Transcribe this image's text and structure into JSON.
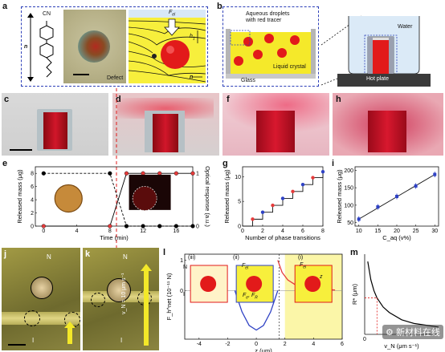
{
  "panels": {
    "a": {
      "letter": "a",
      "molecule_label": "CN",
      "n_label": "n",
      "defect_label": "Defect",
      "force_label": "F",
      "force_sub": "el",
      "h_label": "h",
      "h_sub": "1",
      "sub_n": "n"
    },
    "b": {
      "letter": "b",
      "droplets_label_1": "Aqueous droplets",
      "droplets_label_2": "with red tracer",
      "liquid_crystal_label": "Liquid crystal",
      "glass_label": "Glass",
      "water_label": "Water",
      "hotplate_label": "Hot plate"
    },
    "c": {
      "letter": "c"
    },
    "d": {
      "letter": "d"
    },
    "f": {
      "letter": "f"
    },
    "h": {
      "letter": "h"
    },
    "e": {
      "letter": "e"
    },
    "g": {
      "letter": "g"
    },
    "i": {
      "letter": "i"
    },
    "j": {
      "letter": "j",
      "N": "N",
      "I": "I"
    },
    "k": {
      "letter": "k",
      "N": "N",
      "I": "I",
      "velocity": "v_N = 10 μm s⁻¹"
    },
    "l": {
      "letter": "l",
      "iii": "(iii)",
      "ii": "(ii)",
      "i": "(i)",
      "N": "N",
      "I": "I",
      "z": "z",
      "Fel": "F",
      "Fel_sub": "el",
      "Fe": "F",
      "Fe_sub": "e",
      "Fr": "F",
      "Fr_sub": "R"
    },
    "m": {
      "letter": "m"
    }
  },
  "watermark": "新材料在线",
  "chart_data": [
    {
      "panel": "e",
      "type": "line",
      "xlabel": "Time (min)",
      "ylabel": "Released mass (μg)",
      "ylabel_right": "Optical response (a.u.)",
      "xticks": [
        0,
        4,
        8,
        12,
        16
      ],
      "yticks": [
        0,
        2,
        4,
        6,
        8
      ],
      "yticks_right": [
        0,
        1
      ],
      "xlim": [
        -1,
        18
      ],
      "ylim": [
        0,
        9
      ],
      "series": [
        {
          "color": "#e53b3b",
          "x": [
            0,
            8,
            10,
            12,
            14,
            16,
            18
          ],
          "y": [
            0,
            0,
            8,
            8,
            8,
            8,
            8
          ]
        },
        {
          "color": "#000000",
          "x": [
            0,
            8,
            10,
            12,
            14,
            16,
            18
          ],
          "y": [
            8,
            8,
            0,
            0,
            0,
            0,
            0
          ]
        }
      ]
    },
    {
      "panel": "g",
      "type": "line",
      "xlabel": "Number of phase transitions",
      "ylabel": "Released mass (μg)",
      "xticks": [
        0,
        2,
        4,
        6,
        8
      ],
      "yticks": [
        0,
        5,
        10
      ],
      "xlim": [
        0,
        8
      ],
      "ylim": [
        0,
        12
      ],
      "steps": {
        "x": [
          1,
          2,
          3,
          4,
          5,
          6,
          7,
          8
        ],
        "y": [
          1.4,
          2.8,
          4.2,
          5.6,
          7.0,
          8.4,
          9.8,
          11.0
        ]
      }
    },
    {
      "panel": "i",
      "type": "scatter",
      "xlabel": "C_aq (v%)",
      "ylabel": "Released mass (μg)",
      "xticks": [
        10,
        15,
        20,
        25,
        30
      ],
      "yticks": [
        50,
        100,
        150,
        200
      ],
      "xlim": [
        9,
        31
      ],
      "ylim": [
        40,
        210
      ],
      "x": [
        10,
        15,
        20,
        25,
        30
      ],
      "y": [
        60,
        95,
        125,
        155,
        188
      ]
    },
    {
      "panel": "l",
      "type": "line",
      "xlabel": "z (μm)",
      "ylabel": "F_h^net (10⁻¹¹ N)",
      "xticks": [
        -4,
        -2,
        0,
        2,
        4,
        6
      ],
      "yticks": [
        0,
        1
      ],
      "xlim": [
        -5,
        6
      ],
      "ylim": [
        -1.6,
        1.2
      ],
      "series": [
        {
          "color": "#2f42c4",
          "x": [
            -1.5,
            -1,
            -0.5,
            0,
            0.5,
            1,
            1.5
          ],
          "y": [
            0,
            -0.7,
            -1.15,
            -1.3,
            -1.15,
            -0.7,
            0
          ]
        },
        {
          "color": "#e53b3b",
          "x": [
            1.5,
            1.8,
            2.2,
            2.7,
            3.5,
            4.5,
            5.5
          ],
          "y": [
            1.0,
            0.6,
            0.35,
            0.2,
            0.1,
            0.05,
            0.02
          ]
        }
      ]
    },
    {
      "panel": "m",
      "type": "line",
      "xlabel": "v_N (μm s⁻¹)",
      "ylabel": "R* (μm)",
      "xticks": [
        0
      ],
      "yticks": [
        0,
        5,
        10,
        15,
        20
      ],
      "xlim": [
        0,
        12
      ],
      "ylim": [
        0,
        22
      ],
      "series": [
        {
          "color": "#000000",
          "x": [
            0.5,
            1,
            1.5,
            2,
            3,
            4,
            6,
            8,
            10,
            12
          ],
          "y": [
            20,
            15,
            12,
            10,
            7.5,
            6,
            4,
            3,
            2.5,
            2
          ]
        }
      ]
    }
  ]
}
